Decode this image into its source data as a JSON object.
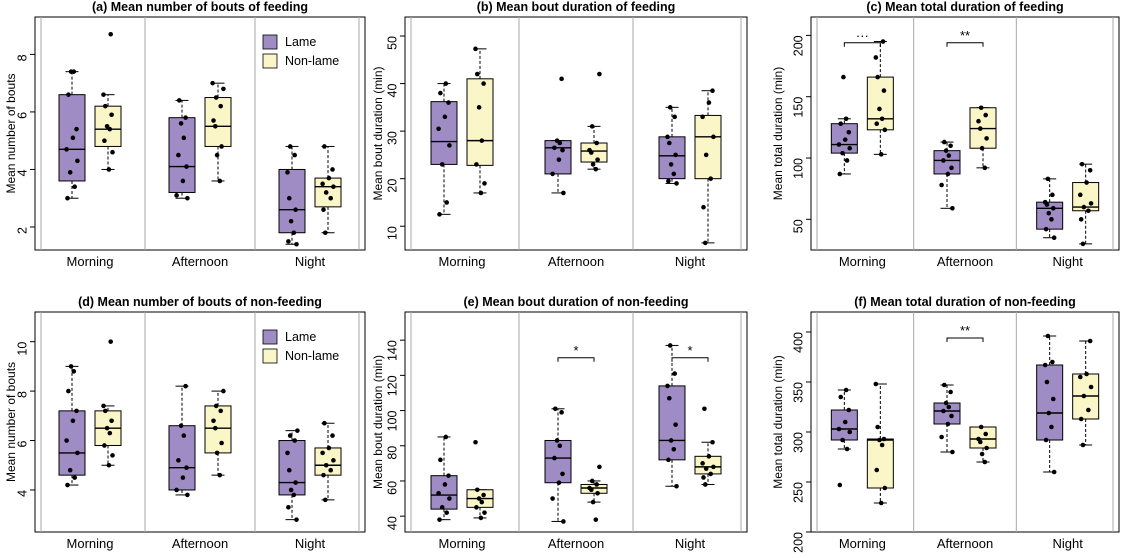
{
  "colors": {
    "lame": "#9F8CC5",
    "nonlame": "#FBF6C8",
    "stroke": "#000000",
    "divider": "#A8A8A8"
  },
  "legend": {
    "lame": "Lame",
    "nonlame": "Non-lame"
  },
  "chart_data": [
    {
      "type": "box",
      "title": "(a) Mean number of bouts of feeding",
      "ylabel": "Mean number of bouts",
      "categories": [
        "Morning",
        "Afternoon",
        "Night"
      ],
      "ylim": [
        1.2,
        9.3
      ],
      "yticks": [
        2,
        4,
        6,
        8
      ],
      "legend": "top-right",
      "series": [
        {
          "name": "Lame",
          "boxes": [
            {
              "whislo": 3.0,
              "q1": 3.6,
              "med": 4.7,
              "q3": 6.6,
              "whishi": 7.4,
              "points": [
                3.0,
                3.4,
                3.9,
                4.3,
                4.7,
                5.1,
                5.4,
                6.6,
                7.4,
                7.4
              ]
            },
            {
              "whislo": 3.0,
              "q1": 3.2,
              "med": 4.1,
              "q3": 5.8,
              "whishi": 6.4,
              "points": [
                3.0,
                3.1,
                3.6,
                4.1,
                4.5,
                5.1,
                5.6,
                5.8,
                6.4
              ]
            },
            {
              "whislo": 1.4,
              "q1": 1.8,
              "med": 2.6,
              "q3": 4.0,
              "whishi": 4.8,
              "points": [
                1.4,
                1.5,
                1.8,
                2.2,
                2.6,
                3.0,
                3.9,
                4.5,
                4.8
              ]
            }
          ]
        },
        {
          "name": "Non-lame",
          "boxes": [
            {
              "whislo": 4.0,
              "q1": 4.8,
              "med": 5.4,
              "q3": 6.2,
              "whishi": 6.6,
              "points": [
                4.0,
                4.6,
                5.0,
                5.4,
                5.5,
                5.9,
                6.2,
                6.6,
                8.7
              ]
            },
            {
              "whislo": 3.6,
              "q1": 4.8,
              "med": 5.5,
              "q3": 6.5,
              "whishi": 7.0,
              "points": [
                3.6,
                4.5,
                4.8,
                5.5,
                5.7,
                6.2,
                6.5,
                6.8,
                7.0
              ]
            },
            {
              "whislo": 1.8,
              "q1": 2.7,
              "med": 3.4,
              "q3": 3.7,
              "whishi": 4.8,
              "points": [
                1.8,
                2.6,
                3.0,
                3.2,
                3.4,
                3.5,
                3.7,
                4.0,
                4.8
              ]
            }
          ]
        }
      ],
      "annotations": []
    },
    {
      "type": "box",
      "title": "(b) Mean bout duration of feeding",
      "ylabel": "Mean bout duration (min)",
      "categories": [
        "Morning",
        "Afternoon",
        "Night"
      ],
      "ylim": [
        5,
        54
      ],
      "yticks": [
        10,
        20,
        30,
        40,
        50
      ],
      "series": [
        {
          "name": "Lame",
          "boxes": [
            {
              "whislo": 12.5,
              "q1": 23.0,
              "med": 27.8,
              "q3": 36.2,
              "whishi": 40.0,
              "points": [
                12.5,
                15.0,
                23.0,
                27.0,
                30.5,
                33.0,
                36.0,
                38.0,
                40.0
              ]
            },
            {
              "whislo": 17.0,
              "q1": 21.0,
              "med": 26.5,
              "q3": 28.0,
              "whishi": 28.0,
              "points": [
                17.0,
                21.0,
                24.0,
                26.0,
                26.5,
                27.5,
                28.0,
                41.0
              ]
            },
            {
              "whislo": 19.0,
              "q1": 20.0,
              "med": 24.8,
              "q3": 28.8,
              "whishi": 35.0,
              "points": [
                19.0,
                19.5,
                21.0,
                23.0,
                25.0,
                27.5,
                28.8,
                33.0,
                35.0
              ]
            }
          ]
        },
        {
          "name": "Non-lame",
          "boxes": [
            {
              "whislo": 17.0,
              "q1": 22.8,
              "med": 28.0,
              "q3": 41.0,
              "whishi": 47.3,
              "points": [
                17.0,
                19.0,
                23.0,
                28.0,
                35.0,
                40.0,
                42.0,
                47.3
              ]
            },
            {
              "whislo": 22.0,
              "q1": 23.5,
              "med": 25.8,
              "q3": 27.5,
              "whishi": 31.0,
              "points": [
                22.0,
                23.0,
                24.0,
                25.5,
                26.0,
                27.5,
                31.0,
                42.0
              ]
            },
            {
              "whislo": 6.5,
              "q1": 20.0,
              "med": 28.8,
              "q3": 33.3,
              "whishi": 38.5,
              "points": [
                6.5,
                14.0,
                20.0,
                25.0,
                28.8,
                33.0,
                36.0,
                38.5
              ]
            }
          ]
        }
      ],
      "annotations": []
    },
    {
      "type": "box",
      "title": "(c) Mean total duration of feeding",
      "ylabel": "Mean total duration (min)",
      "categories": [
        "Morning",
        "Afternoon",
        "Night"
      ],
      "ylim": [
        25,
        215
      ],
      "yticks": [
        50,
        100,
        150,
        200
      ],
      "series": [
        {
          "name": "Lame",
          "boxes": [
            {
              "whislo": 87,
              "q1": 104,
              "med": 111,
              "q3": 128,
              "whishi": 132,
              "points": [
                87,
                98,
                104,
                108,
                111,
                115,
                121,
                128,
                132,
                166
              ]
            },
            {
              "whislo": 59,
              "q1": 87,
              "med": 98,
              "q3": 106,
              "whishi": 113,
              "points": [
                59,
                78,
                87,
                92,
                98,
                102,
                106,
                110,
                113
              ]
            },
            {
              "whislo": 35,
              "q1": 42,
              "med": 59,
              "q3": 64,
              "whishi": 83,
              "points": [
                35,
                42,
                50,
                55,
                59,
                62,
                64,
                70,
                83
              ]
            }
          ]
        },
        {
          "name": "Non-lame",
          "boxes": [
            {
              "whislo": 103,
              "q1": 123,
              "med": 132,
              "q3": 166,
              "whishi": 195,
              "points": [
                103,
                123,
                128,
                132,
                140,
                155,
                166,
                182,
                195
              ]
            },
            {
              "whislo": 92,
              "q1": 108,
              "med": 124,
              "q3": 141,
              "whishi": 141,
              "points": [
                92,
                108,
                116,
                124,
                130,
                135,
                141
              ]
            },
            {
              "whislo": 30,
              "q1": 57,
              "med": 60,
              "q3": 80,
              "whishi": 95,
              "points": [
                30,
                50,
                57,
                60,
                63,
                70,
                80,
                90,
                95
              ]
            }
          ]
        }
      ],
      "annotations": [
        {
          "category": "Morning",
          "y": 194,
          "label": "···"
        },
        {
          "category": "Afternoon",
          "y": 194,
          "label": "**"
        }
      ]
    },
    {
      "type": "box",
      "title": "(d) Mean number of bouts of non-feeding",
      "ylabel": "Mean number of bouts",
      "categories": [
        "Morning",
        "Afternoon",
        "Night"
      ],
      "ylim": [
        2.3,
        11.2
      ],
      "yticks": [
        4,
        6,
        8,
        10
      ],
      "legend": "top-right",
      "series": [
        {
          "name": "Lame",
          "boxes": [
            {
              "whislo": 4.2,
              "q1": 4.6,
              "med": 5.5,
              "q3": 7.2,
              "whishi": 9.0,
              "points": [
                4.2,
                4.5,
                4.8,
                5.5,
                6.0,
                6.8,
                7.2,
                8.0,
                8.8,
                9.0
              ]
            },
            {
              "whislo": 3.8,
              "q1": 4.0,
              "med": 4.9,
              "q3": 6.6,
              "whishi": 8.2,
              "points": [
                3.8,
                4.0,
                4.5,
                4.9,
                5.2,
                6.2,
                6.6,
                8.2
              ]
            },
            {
              "whislo": 2.8,
              "q1": 3.8,
              "med": 4.3,
              "q3": 6.0,
              "whishi": 6.4,
              "points": [
                2.8,
                3.3,
                3.8,
                4.0,
                4.3,
                4.8,
                5.5,
                6.0,
                6.2,
                6.4
              ]
            }
          ]
        },
        {
          "name": "Non-lame",
          "boxes": [
            {
              "whislo": 5.0,
              "q1": 5.8,
              "med": 6.5,
              "q3": 7.2,
              "whishi": 7.4,
              "points": [
                5.0,
                5.4,
                5.8,
                6.3,
                6.5,
                6.8,
                7.2,
                7.4,
                10.0
              ]
            },
            {
              "whislo": 4.6,
              "q1": 5.5,
              "med": 6.5,
              "q3": 7.4,
              "whishi": 8.0,
              "points": [
                4.6,
                5.5,
                5.9,
                6.5,
                6.8,
                7.2,
                7.4,
                8.0
              ]
            },
            {
              "whislo": 3.6,
              "q1": 4.6,
              "med": 5.0,
              "q3": 5.7,
              "whishi": 6.7,
              "points": [
                3.6,
                4.6,
                4.8,
                5.0,
                5.2,
                5.5,
                5.7,
                6.2,
                6.7
              ]
            }
          ]
        }
      ],
      "annotations": []
    },
    {
      "type": "box",
      "title": "(e) Mean bout duration of non-feeding",
      "ylabel": "Mean bout duration (min)",
      "categories": [
        "Morning",
        "Afternoon",
        "Night"
      ],
      "ylim": [
        31,
        156
      ],
      "yticks": [
        40,
        60,
        80,
        100,
        120,
        140
      ],
      "series": [
        {
          "name": "Lame",
          "boxes": [
            {
              "whislo": 38,
              "q1": 44,
              "med": 52,
              "q3": 63,
              "whishi": 85,
              "points": [
                38,
                42,
                45,
                50,
                53,
                58,
                63,
                72,
                85
              ]
            },
            {
              "whislo": 37,
              "q1": 59,
              "med": 73,
              "q3": 83,
              "whishi": 101,
              "points": [
                37,
                50,
                59,
                64,
                73,
                80,
                83,
                99,
                101
              ]
            },
            {
              "whislo": 57,
              "q1": 72,
              "med": 83,
              "q3": 114,
              "whishi": 137,
              "points": [
                57,
                72,
                78,
                83,
                92,
                107,
                114,
                121,
                137
              ]
            }
          ]
        },
        {
          "name": "Non-lame",
          "boxes": [
            {
              "whislo": 39,
              "q1": 45,
              "med": 50,
              "q3": 55,
              "whishi": 55,
              "points": [
                39,
                42,
                45,
                48,
                50,
                52,
                55,
                82
              ]
            },
            {
              "whislo": 48,
              "q1": 53,
              "med": 56,
              "q3": 58,
              "whishi": 60,
              "points": [
                38,
                48,
                53,
                55,
                56,
                58,
                60,
                68
              ]
            },
            {
              "whislo": 58,
              "q1": 64,
              "med": 68,
              "q3": 74,
              "whishi": 82,
              "points": [
                58,
                62,
                64,
                67,
                68,
                70,
                74,
                82,
                101
              ]
            }
          ]
        }
      ],
      "annotations": [
        {
          "category": "Afternoon",
          "y": 130,
          "label": "*"
        },
        {
          "category": "Night",
          "y": 130,
          "label": "*"
        }
      ]
    },
    {
      "type": "box",
      "title": "(f) Mean total duration of non-feeding",
      "ylabel": "Mean total duration (min)",
      "categories": [
        "Morning",
        "Afternoon",
        "Night"
      ],
      "ylim": [
        200,
        420
      ],
      "yticks": [
        200,
        250,
        300,
        350,
        400
      ],
      "series": [
        {
          "name": "Lame",
          "boxes": [
            {
              "whislo": 283,
              "q1": 292,
              "med": 303,
              "q3": 322,
              "whishi": 342,
              "points": [
                247,
                283,
                292,
                300,
                303,
                310,
                322,
                335,
                342
              ]
            },
            {
              "whislo": 280,
              "q1": 308,
              "med": 321,
              "q3": 329,
              "whishi": 347,
              "points": [
                280,
                295,
                308,
                316,
                321,
                325,
                329,
                340,
                347
              ]
            },
            {
              "whislo": 260,
              "q1": 292,
              "med": 319,
              "q3": 367,
              "whishi": 396,
              "points": [
                260,
                292,
                305,
                319,
                333,
                350,
                367,
                370,
                396
              ]
            }
          ]
        },
        {
          "name": "Non-lame",
          "boxes": [
            {
              "whislo": 229,
              "q1": 244,
              "med": 292,
              "q3": 293,
              "whishi": 348,
              "points": [
                229,
                244,
                262,
                287,
                292,
                293,
                305,
                348
              ]
            },
            {
              "whislo": 270,
              "q1": 284,
              "med": 293,
              "q3": 305,
              "whishi": 305,
              "points": [
                270,
                278,
                284,
                290,
                293,
                298,
                305
              ]
            },
            {
              "whislo": 287,
              "q1": 313,
              "med": 336,
              "q3": 358,
              "whishi": 391,
              "points": [
                287,
                313,
                322,
                336,
                345,
                355,
                358,
                391
              ]
            }
          ]
        }
      ],
      "annotations": [
        {
          "category": "Afternoon",
          "y": 394,
          "label": "**"
        }
      ]
    }
  ]
}
